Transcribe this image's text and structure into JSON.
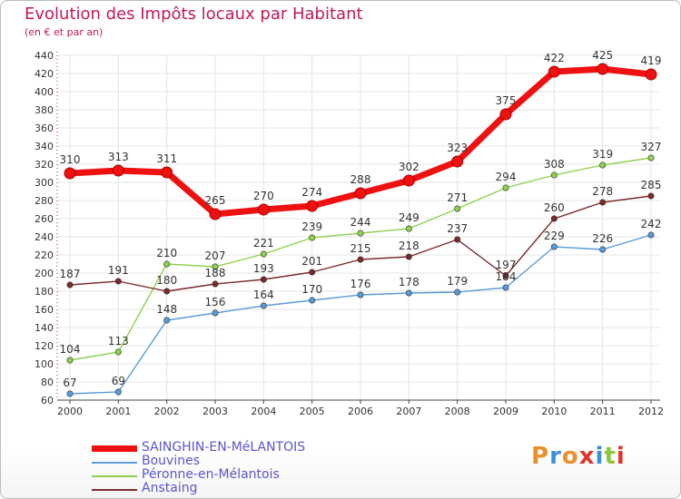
{
  "header": {
    "title": "Evolution des Impôts locaux par Habitant",
    "subtitle": "(en € et par an)"
  },
  "logo": {
    "text": "Proxiti",
    "letter_colors": [
      "#e8912d",
      "#3f8fd6",
      "#e8912d",
      "#e0352b",
      "#3f8fd6",
      "#8cc63f",
      "#e0352b"
    ]
  },
  "chart_data": {
    "type": "line",
    "x": [
      "2000",
      "2001",
      "2002",
      "2003",
      "2004",
      "2005",
      "2006",
      "2007",
      "2008",
      "2009",
      "2010",
      "2011",
      "2012"
    ],
    "ylim": [
      60,
      440
    ],
    "y_ticks": [
      "60",
      "80",
      "100",
      "120",
      "140",
      "160",
      "180",
      "200",
      "220",
      "240",
      "260",
      "280",
      "300",
      "320",
      "340",
      "360",
      "380",
      "400",
      "420",
      "440"
    ],
    "grid": true,
    "legend_position": "bottom-left",
    "series": [
      {
        "name": "SAINGHIN-EN-MéLANTOIS",
        "color": "#ee1111",
        "values": [
          310,
          313,
          311,
          265,
          270,
          274,
          288,
          302,
          323,
          375,
          422,
          425,
          419
        ],
        "labels": [
          "310",
          "313",
          "311",
          "265",
          "270",
          "274",
          "288",
          "302",
          "323",
          "375",
          "422",
          "425",
          "419"
        ]
      },
      {
        "name": "Bouvines",
        "color": "#5b9bd5",
        "values": [
          67,
          69,
          148,
          156,
          164,
          170,
          176,
          178,
          179,
          184,
          229,
          226,
          242
        ],
        "labels": [
          "67",
          "69",
          "148",
          "156",
          "164",
          "170",
          "176",
          "178",
          "179",
          "184",
          "229",
          "226",
          "242"
        ]
      },
      {
        "name": "Péronne-en-Mélantois",
        "color": "#8fd14f",
        "values": [
          104,
          113,
          210,
          207,
          221,
          239,
          244,
          249,
          271,
          294,
          308,
          319,
          327
        ],
        "labels": [
          "104",
          "113",
          "210",
          "207",
          "221",
          "239",
          "244",
          "249",
          "271",
          "294",
          "308",
          "319",
          "327"
        ]
      },
      {
        "name": "Anstaing",
        "color": "#7b2a2a",
        "values": [
          187,
          191,
          180,
          188,
          193,
          201,
          215,
          218,
          237,
          197,
          260,
          278,
          285
        ],
        "labels": [
          "187",
          "191",
          "180",
          "188",
          "193",
          "201",
          "215",
          "218",
          "237",
          "197",
          "260",
          "278",
          "285"
        ]
      }
    ]
  }
}
